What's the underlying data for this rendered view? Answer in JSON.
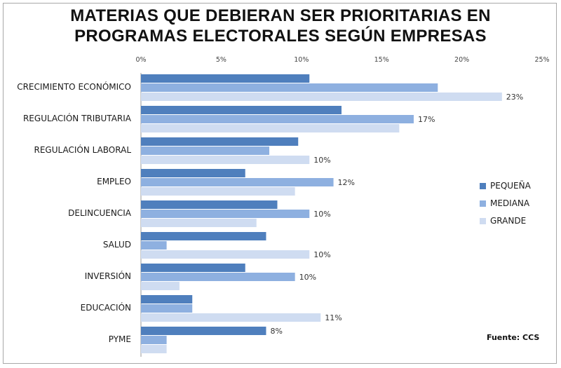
{
  "chart_data": {
    "type": "bar",
    "orientation": "horizontal",
    "title_lines": [
      "MATERIAS QUE DEBIERAN SER PRIORITARIAS EN",
      "PROGRAMAS ELECTORALES SEGÚN EMPRESAS"
    ],
    "x_ticks": [
      "0%",
      "5%",
      "10%",
      "15%",
      "20%",
      "25%"
    ],
    "xlim": [
      0,
      25
    ],
    "categories": [
      "CRECIMIENTO ECONÓMICO",
      "REGULACIÓN TRIBUTARIA",
      "REGULACIÓN LABORAL",
      "EMPLEO",
      "DELINCUENCIA",
      "SALUD",
      "INVERSIÓN",
      "EDUCACIÓN",
      "PYME"
    ],
    "series": [
      {
        "name": "PEQUEÑA",
        "color": "#4f7fbd",
        "values": [
          10.5,
          12.5,
          9.8,
          6.5,
          8.5,
          7.8,
          6.5,
          3.2,
          7.8
        ]
      },
      {
        "name": "MEDIANA",
        "color": "#8eb0e0",
        "values": [
          18.5,
          17,
          8,
          12,
          10.5,
          1.6,
          9.6,
          3.2,
          1.6
        ]
      },
      {
        "name": "GRANDE",
        "color": "#cfdcf1",
        "values": [
          22.5,
          16.1,
          10.5,
          9.6,
          7.2,
          10.5,
          2.4,
          11.2,
          1.6
        ]
      }
    ],
    "data_labels": [
      {
        "category": 0,
        "series": 2,
        "text": "23%"
      },
      {
        "category": 1,
        "series": 1,
        "text": "17%"
      },
      {
        "category": 2,
        "series": 2,
        "text": "10%"
      },
      {
        "category": 3,
        "series": 1,
        "text": "12%"
      },
      {
        "category": 4,
        "series": 1,
        "text": "10%"
      },
      {
        "category": 5,
        "series": 2,
        "text": "10%"
      },
      {
        "category": 6,
        "series": 1,
        "text": "10%"
      },
      {
        "category": 7,
        "series": 2,
        "text": "11%"
      },
      {
        "category": 8,
        "series": 0,
        "text": "8%"
      }
    ],
    "grid": false,
    "legend_position": "right"
  },
  "source": "Fuente:  CCS"
}
